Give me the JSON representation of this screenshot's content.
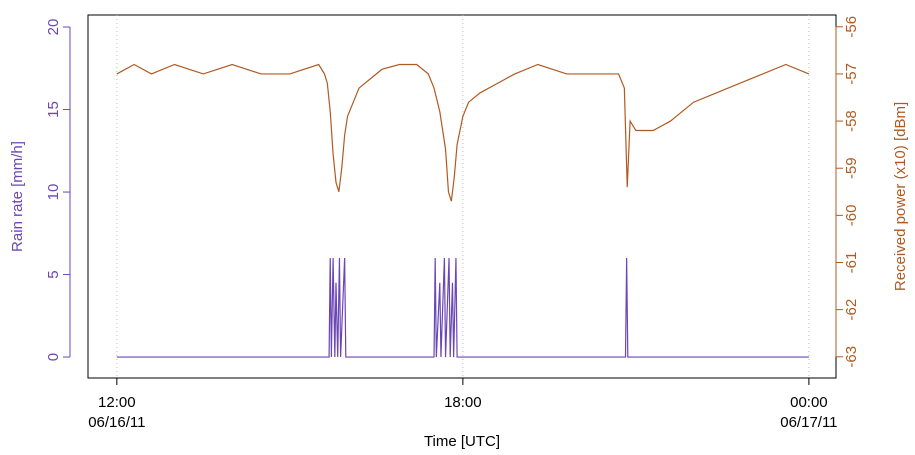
{
  "chart_data": {
    "type": "line",
    "xlabel": "Time  [UTC]",
    "ylabel": "Rain rate [mm/h]",
    "y2label": "Received power (x10) [dBm]",
    "xlim": [
      11.5,
      24.47
    ],
    "xticks": [
      {
        "value": 12,
        "label": "12:00"
      },
      {
        "value": 18,
        "label": "18:00"
      },
      {
        "value": 24,
        "label": "00:00"
      }
    ],
    "xtick_dates": [
      {
        "value": 12,
        "label": "06/16/11"
      },
      {
        "value": 24,
        "label": "06/17/11"
      }
    ],
    "ylim": [
      -1.27,
      20.73
    ],
    "yticks": [
      0,
      5,
      10,
      15,
      20
    ],
    "y2lim": [
      -63.45,
      -55.75
    ],
    "y2ticks": [
      -63,
      -62,
      -61,
      -60,
      -59,
      -58,
      -57,
      -56
    ],
    "grid": true,
    "series": [
      {
        "name": "Rain rate",
        "color": "#6b46b4",
        "x": [
          12,
          15.68,
          15.7,
          15.72,
          15.75,
          15.78,
          15.8,
          15.83,
          15.86,
          15.88,
          15.95,
          15.97,
          17.5,
          17.52,
          17.54,
          17.6,
          17.62,
          17.68,
          17.7,
          17.76,
          17.78,
          17.82,
          17.84,
          17.88,
          17.9,
          20.82,
          20.84,
          20.86,
          24
        ],
        "values": [
          0,
          0,
          6,
          0,
          6,
          0,
          4.5,
          0,
          6,
          0,
          6,
          0,
          0,
          6,
          0,
          4.5,
          0,
          6,
          0,
          6,
          0,
          4.5,
          0,
          6,
          0,
          0,
          6,
          0,
          0
        ]
      },
      {
        "name": "Received power",
        "color": "#b05a22",
        "axis": "y2",
        "x": [
          12,
          12.3,
          12.6,
          13,
          13.5,
          14,
          14.5,
          15,
          15.5,
          15.6,
          15.65,
          15.7,
          15.75,
          15.8,
          15.85,
          15.9,
          15.95,
          16,
          16.1,
          16.2,
          16.4,
          16.6,
          16.9,
          17.2,
          17.4,
          17.5,
          17.6,
          17.7,
          17.75,
          17.8,
          17.85,
          17.9,
          18,
          18.1,
          18.3,
          18.6,
          18.9,
          19.3,
          19.8,
          20.2,
          20.7,
          20.8,
          20.85,
          20.9,
          21,
          21.3,
          21.6,
          22,
          22.4,
          22.8,
          23.2,
          23.6,
          24
        ],
        "values": [
          -57,
          -56.8,
          -57,
          -56.8,
          -57,
          -56.8,
          -57,
          -57,
          -56.8,
          -57,
          -57.2,
          -57.8,
          -58.7,
          -59.3,
          -59.5,
          -59,
          -58.3,
          -57.9,
          -57.6,
          -57.3,
          -57.1,
          -56.9,
          -56.8,
          -56.8,
          -57,
          -57.3,
          -57.8,
          -58.6,
          -59.5,
          -59.7,
          -59.2,
          -58.5,
          -57.9,
          -57.6,
          -57.4,
          -57.2,
          -57,
          -56.8,
          -57,
          -57,
          -57,
          -57.3,
          -59.4,
          -58,
          -58.2,
          -58.2,
          -58,
          -57.6,
          -57.4,
          -57.2,
          -57,
          -56.8,
          -57
        ]
      }
    ]
  }
}
